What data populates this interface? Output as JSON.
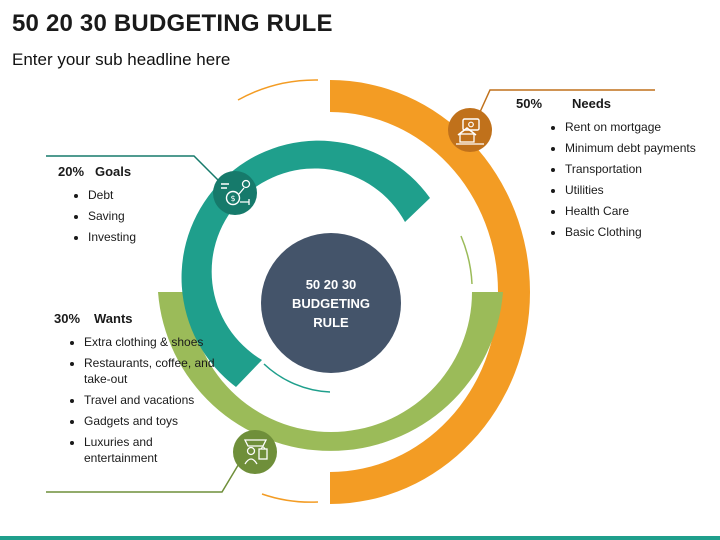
{
  "title": "50 20 30 BUDGETING RULE",
  "subtitle": "Enter your sub headline here",
  "center": {
    "label": "50 20 30\nBUDGETING\nRULE"
  },
  "needs": {
    "percent": "50%",
    "name": "Needs",
    "items": [
      "Rent on mortgage",
      "Minimum debt payments",
      "Transportation",
      "Utilities",
      "Health Care",
      "Basic Clothing"
    ]
  },
  "goals": {
    "percent": "20%",
    "name": "Goals",
    "items": [
      "Debt",
      "Saving",
      "Investing"
    ]
  },
  "wants": {
    "percent": "30%",
    "name": "Wants",
    "items": [
      "Extra clothing & shoes",
      "Restaurants, coffee, and take-out",
      "Travel and vacations",
      "Gadgets and toys",
      "Luxuries and entertainment"
    ]
  },
  "colors": {
    "needs": "#f39c24",
    "wants": "#9bbb59",
    "goals": "#1f9f8c",
    "center": "#44546a",
    "needs_icon": "#c0711b",
    "wants_icon": "#6f8f3a",
    "goals_icon": "#167a6b",
    "accent_bar": "#1f9f8c"
  },
  "icons": {
    "needs": "house-money-icon",
    "goals": "investment-goals-icon",
    "wants": "shopping-person-icon"
  }
}
